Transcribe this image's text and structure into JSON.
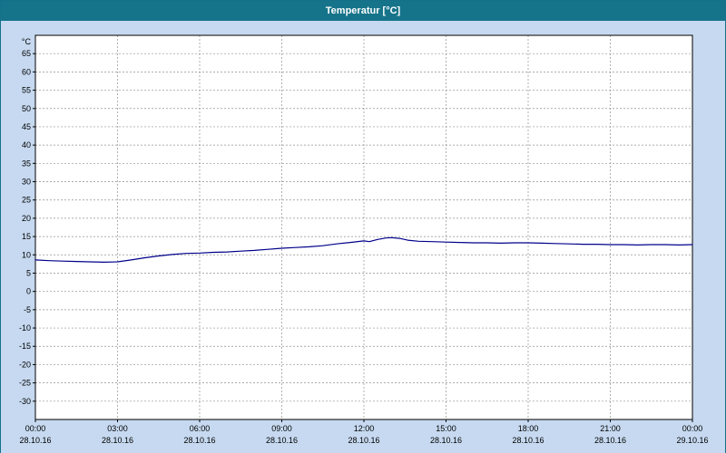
{
  "window": {
    "title": "Temperatur [°C]"
  },
  "chart_data": {
    "type": "line",
    "title": "Temperatur [°C]",
    "y_unit_label": "°C",
    "ylabel": "",
    "xlabel": "",
    "ylim": [
      -35,
      70
    ],
    "x_range_hours": [
      0,
      24
    ],
    "grid": "dashed",
    "legend_position": "none",
    "colors": {
      "line": "#00008b",
      "grid": "#909090",
      "plot_background": "#ffffff",
      "page_background": "#c6d9f0",
      "titlebar_background": "#16748a",
      "titlebar_text": "#ffffff",
      "axis_border": "#000000"
    },
    "y_ticks": [
      65,
      60,
      55,
      50,
      45,
      40,
      35,
      30,
      25,
      20,
      15,
      10,
      5,
      0,
      -5,
      -10,
      -15,
      -20,
      -25,
      -30
    ],
    "x_ticks": [
      {
        "time": "00:00",
        "date": "28.10.16",
        "hour": 0
      },
      {
        "time": "03:00",
        "date": "28.10.16",
        "hour": 3
      },
      {
        "time": "06:00",
        "date": "28.10.16",
        "hour": 6
      },
      {
        "time": "09:00",
        "date": "28.10.16",
        "hour": 9
      },
      {
        "time": "12:00",
        "date": "28.10.16",
        "hour": 12
      },
      {
        "time": "15:00",
        "date": "28.10.16",
        "hour": 15
      },
      {
        "time": "18:00",
        "date": "28.10.16",
        "hour": 18
      },
      {
        "time": "21:00",
        "date": "28.10.16",
        "hour": 21
      },
      {
        "time": "00:00",
        "date": "29.10.16",
        "hour": 24
      }
    ],
    "series": [
      {
        "name": "Temperatur",
        "x_hours": [
          0,
          0.5,
          1,
          1.5,
          2,
          2.5,
          3,
          3.5,
          4,
          4.5,
          5,
          5.5,
          6,
          6.5,
          7,
          7.5,
          8,
          8.5,
          9,
          9.5,
          10,
          10.5,
          11,
          11.5,
          12,
          12.2,
          12.5,
          12.8,
          13,
          13.3,
          13.6,
          14,
          14.5,
          15,
          15.5,
          16,
          16.5,
          17,
          17.5,
          18,
          18.5,
          19,
          19.5,
          20,
          20.5,
          21,
          21.5,
          22,
          22.5,
          23,
          23.5,
          24
        ],
        "values": [
          8.6,
          8.4,
          8.3,
          8.2,
          8.1,
          8.0,
          8.1,
          8.6,
          9.2,
          9.7,
          10.1,
          10.4,
          10.5,
          10.7,
          10.8,
          11.0,
          11.2,
          11.5,
          11.8,
          12.0,
          12.2,
          12.5,
          13.0,
          13.4,
          13.8,
          13.6,
          14.2,
          14.6,
          14.7,
          14.5,
          14.0,
          13.7,
          13.6,
          13.5,
          13.4,
          13.3,
          13.3,
          13.2,
          13.3,
          13.3,
          13.2,
          13.1,
          13.0,
          12.9,
          12.9,
          12.8,
          12.8,
          12.7,
          12.8,
          12.8,
          12.7,
          12.8
        ]
      }
    ]
  }
}
